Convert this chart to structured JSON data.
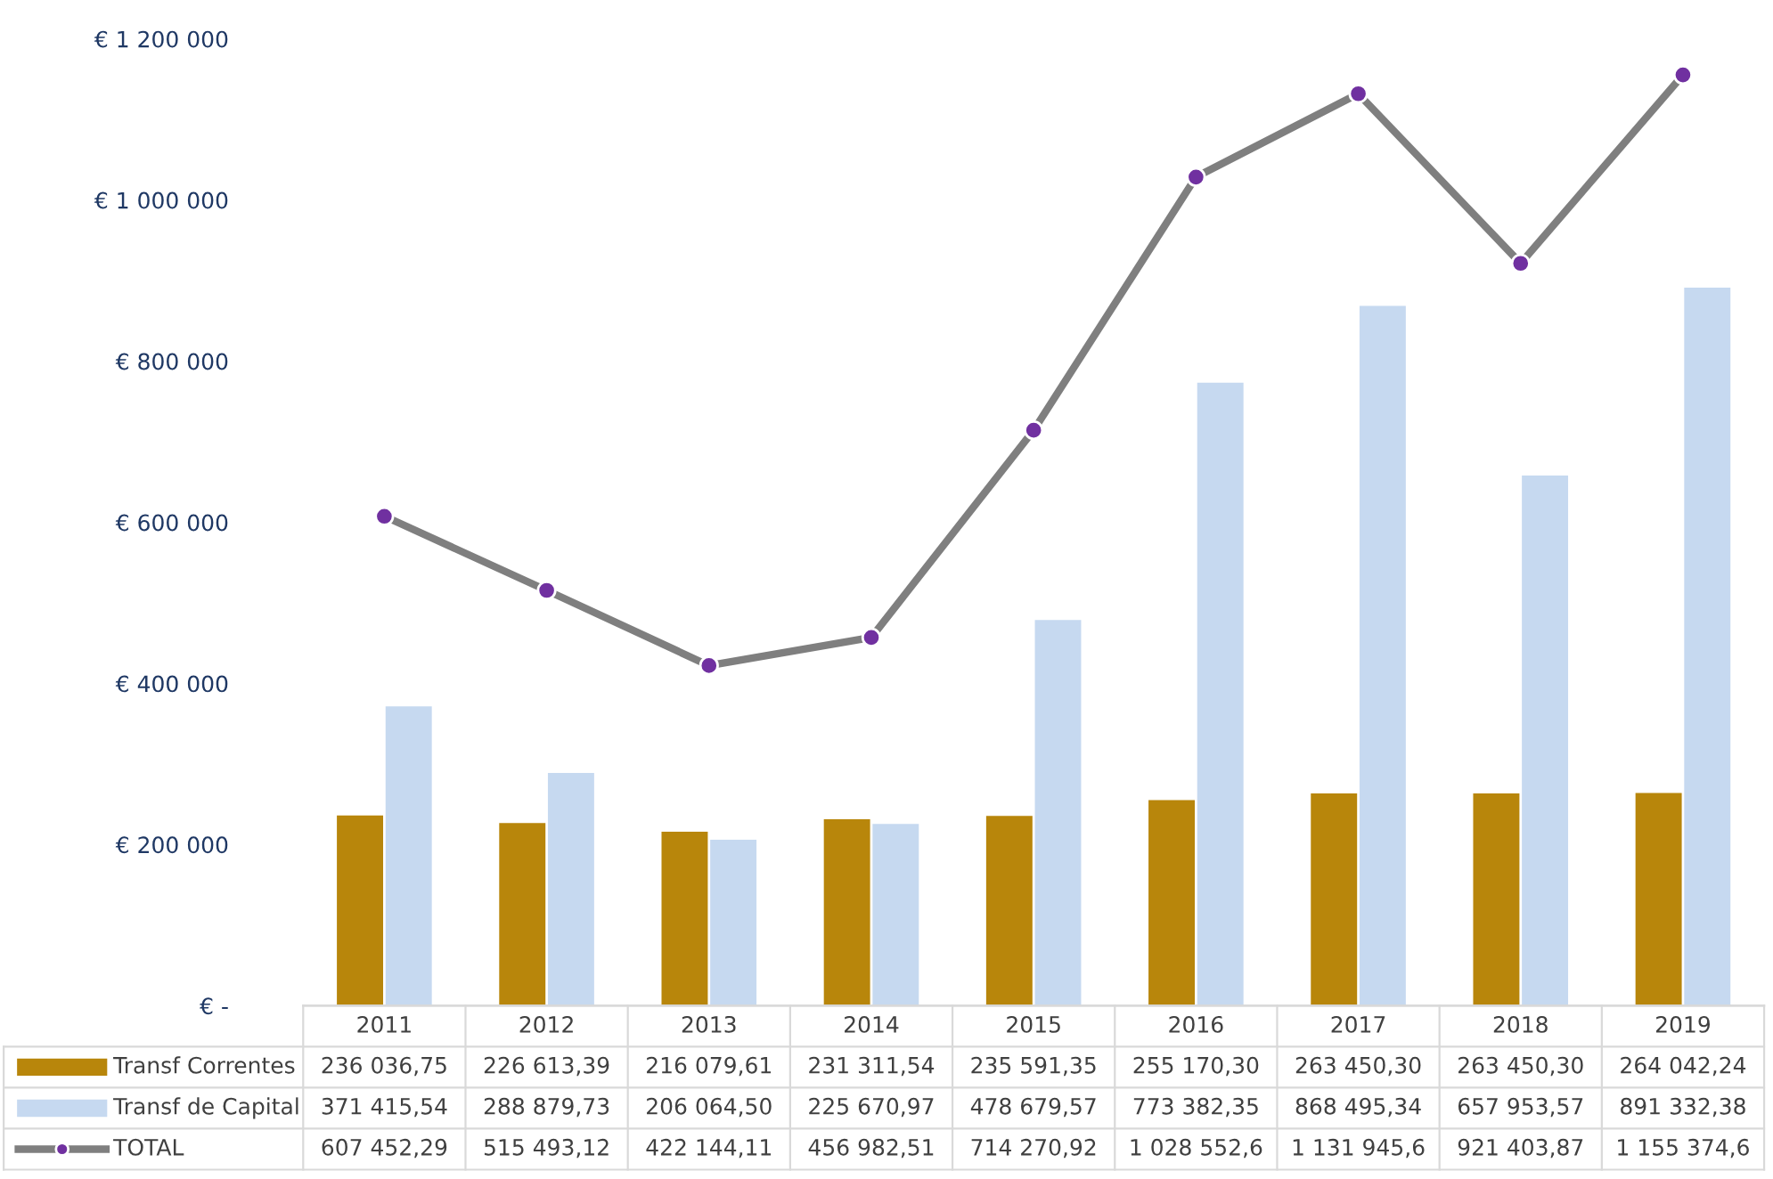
{
  "chart_data": {
    "type": "bar",
    "categories": [
      "2011",
      "2012",
      "2013",
      "2014",
      "2015",
      "2016",
      "2017",
      "2018",
      "2019"
    ],
    "series": [
      {
        "name": "Transf Correntes",
        "color": "#b8860b",
        "values": [
          236036.75,
          226613.39,
          216079.61,
          231311.54,
          235591.35,
          255170.3,
          263450.3,
          263450.3,
          264042.24
        ],
        "value_labels": [
          "236 036,75",
          "226 613,39",
          "216 079,61",
          "231 311,54",
          "235 591,35",
          "255 170,30",
          "263 450,30",
          "263 450,30",
          "264 042,24"
        ]
      },
      {
        "name": "Transf de Capital",
        "color": "#c6d9f0",
        "values": [
          371415.54,
          288879.73,
          206064.5,
          225670.97,
          478679.57,
          773382.35,
          868495.34,
          657953.57,
          891332.38
        ],
        "value_labels": [
          "371 415,54",
          "288 879,73",
          "206 064,50",
          "225 670,97",
          "478 679,57",
          "773 382,35",
          "868 495,34",
          "657 953,57",
          "891 332,38"
        ]
      },
      {
        "name": "TOTAL",
        "type": "line",
        "color": "#7f7f7f",
        "marker": "circle",
        "values": [
          607452.29,
          515493.12,
          422144.11,
          456982.51,
          714270.92,
          1028552.6,
          1131945.6,
          921403.87,
          1155374.6
        ],
        "value_labels": [
          "607 452,29",
          "515 493,12",
          "422 144,11",
          "456 982,51",
          "714 270,92",
          "1 028 552,6",
          "1 131 945,6",
          "921 403,87",
          "1 155 374,6"
        ]
      }
    ],
    "legend": "bottom left",
    "ylim": [
      0,
      1200000
    ],
    "yticks": [
      {
        "value": 0,
        "label": "€ -"
      },
      {
        "value": 200000,
        "label": "€ 200 000"
      },
      {
        "value": 400000,
        "label": "€ 400 000"
      },
      {
        "value": 600000,
        "label": "€ 600 000"
      },
      {
        "value": 800000,
        "label": "€ 800 000"
      },
      {
        "value": 1000000,
        "label": "€ 1 000 000"
      },
      {
        "value": 1200000,
        "label": "€ 1 200 000"
      }
    ]
  }
}
